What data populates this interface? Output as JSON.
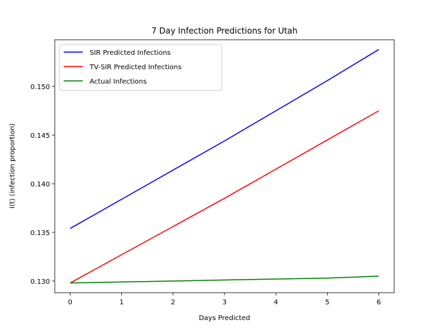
{
  "chart_data": {
    "type": "line",
    "title": "7 Day Infection Predictions for Utah",
    "xlabel": "Days Predicted",
    "ylabel": "I(t) (infection proportion)",
    "x": [
      0,
      1,
      2,
      3,
      4,
      5,
      6
    ],
    "xlim": [
      -0.3,
      6.3
    ],
    "ylim": [
      0.1288,
      0.1548
    ],
    "xticks": [
      "0",
      "1",
      "2",
      "3",
      "4",
      "5",
      "6"
    ],
    "yticks": [
      "0.130",
      "0.135",
      "0.140",
      "0.145",
      "0.150"
    ],
    "grid": false,
    "legend_position": "top-left",
    "series": [
      {
        "name": "SIR Predicted Infections",
        "color": "#0000ff",
        "values": [
          0.1354,
          0.1384,
          0.1414,
          0.1444,
          0.1475,
          0.1506,
          0.1538
        ]
      },
      {
        "name": "TV-SIR Predicted Infections",
        "color": "#ff0000",
        "values": [
          0.1298,
          0.1327,
          0.1356,
          0.1385,
          0.1415,
          0.1445,
          0.1475
        ]
      },
      {
        "name": "Actual Infections",
        "color": "#008000",
        "values": [
          0.1298,
          0.1299,
          0.13,
          0.1301,
          0.1302,
          0.1303,
          0.1305
        ]
      }
    ]
  }
}
